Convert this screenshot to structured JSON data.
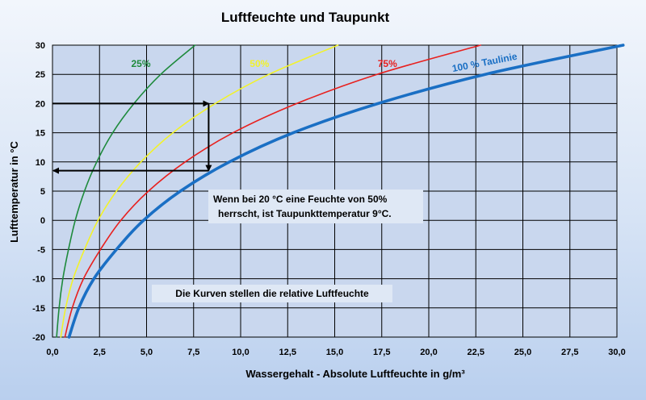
{
  "chart_data": {
    "type": "line",
    "title": "Luftfeuchte und Taupunkt",
    "xlabel": "Wassergehalt - Absolute Luftfeuchte  in g/m³",
    "ylabel": "Lufttemperatur in °C",
    "xlim": [
      0,
      30
    ],
    "ylim": [
      -20,
      30
    ],
    "xticks": [
      "0,0",
      "2,5",
      "5,0",
      "7,5",
      "10,0",
      "12,5",
      "15,0",
      "17,5",
      "20,0",
      "22,5",
      "25,0",
      "27,5",
      "30,0"
    ],
    "yticks": [
      "30",
      "25",
      "20",
      "15",
      "10",
      "5",
      "0",
      "-5",
      "-10",
      "-15",
      "-20"
    ],
    "grid": true,
    "temperatures": [
      -20,
      -15,
      -10,
      -5,
      0,
      5,
      10,
      15,
      20,
      25,
      30
    ],
    "series": [
      {
        "name": "25%",
        "color": "#1e8a3c",
        "values": [
          0.22,
          0.35,
          0.55,
          0.85,
          1.21,
          1.7,
          2.35,
          3.2,
          4.33,
          5.75,
          7.58
        ]
      },
      {
        "name": "50%",
        "color": "#f2f22a",
        "values": [
          0.44,
          0.7,
          1.1,
          1.7,
          2.42,
          3.4,
          4.7,
          6.4,
          8.65,
          11.5,
          15.17
        ]
      },
      {
        "name": "75%",
        "color": "#e8201e",
        "values": [
          0.66,
          1.05,
          1.65,
          2.55,
          3.63,
          5.1,
          7.05,
          9.6,
          12.98,
          17.25,
          22.75
        ]
      },
      {
        "name": "100 % Taulinie",
        "color": "#1a6fc4",
        "values": [
          0.88,
          1.4,
          2.2,
          3.4,
          4.84,
          6.8,
          9.4,
          12.8,
          17.3,
          23.0,
          30.33
        ]
      }
    ],
    "annotations": [
      {
        "text": "Wenn bei 20 °C eine Feuchte von 50%"
      },
      {
        "text": "herrscht, ist Taupunkttemperatur 9°C."
      },
      {
        "text": "Die Kurven stellen die relative Luftfeuchte"
      }
    ],
    "example": {
      "t_start": 20,
      "x_value": 8.3,
      "t_dew": 8.5
    }
  }
}
